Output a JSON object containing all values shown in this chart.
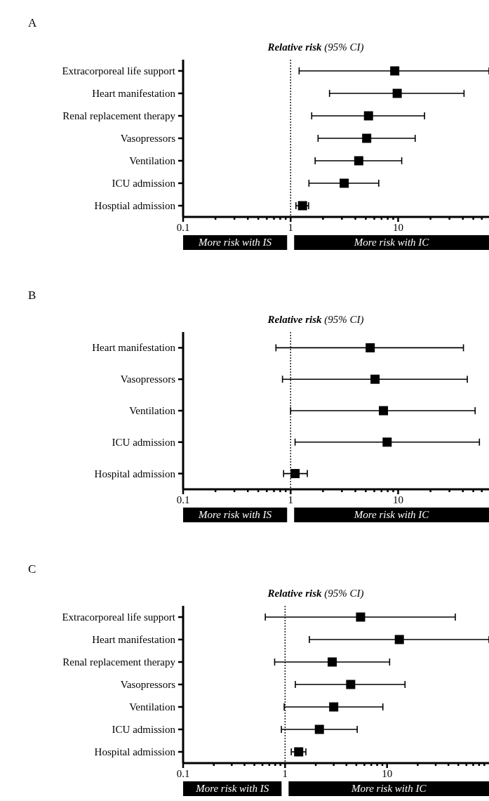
{
  "chart_data": [
    {
      "type": "scatter",
      "title": "A",
      "subtitle": "Relative risk (95% CI)",
      "orientation": "horizontal",
      "log": "x",
      "marker": "square",
      "color": "#000000",
      "categories": [
        "Extracorporeal life support",
        "Heart manifestation",
        "Renal replacement therapy",
        "Vasopressors",
        "Ventilation",
        "ICU admission",
        "Hosptial admission"
      ],
      "values": [
        9.3,
        9.8,
        5.3,
        5.1,
        4.3,
        3.15,
        1.29
      ],
      "errors": [
        [
          1.2,
          70
        ],
        [
          2.3,
          41
        ],
        [
          1.57,
          17.6
        ],
        [
          1.8,
          14.4
        ],
        [
          1.69,
          10.8
        ],
        [
          1.48,
          6.6
        ],
        [
          1.12,
          1.47
        ]
      ],
      "xlim": [
        0.1,
        70
      ],
      "xticks": [
        0.1,
        {
          "value": 0.2,
          "label": null
        },
        {
          "value": 0.3,
          "label": null
        },
        {
          "value": 0.4,
          "label": null
        },
        {
          "value": 0.5,
          "label": null
        },
        {
          "value": 0.6,
          "label": null
        },
        {
          "value": 0.7,
          "label": null
        },
        {
          "value": 0.8,
          "label": null
        },
        {
          "value": 0.9,
          "label": null
        },
        1,
        {
          "value": 2,
          "label": null
        },
        {
          "value": 3,
          "label": null
        },
        {
          "value": 4,
          "label": null
        },
        {
          "value": 5,
          "label": null
        },
        {
          "value": 6,
          "label": null
        },
        {
          "value": 7,
          "label": null
        },
        {
          "value": 8,
          "label": null
        },
        {
          "value": 9,
          "label": null
        },
        10,
        {
          "value": 20,
          "label": null
        },
        {
          "value": 30,
          "label": null
        },
        {
          "value": 40,
          "label": null
        },
        {
          "value": 50,
          "label": null
        },
        {
          "value": 60,
          "label": null
        }
      ],
      "ref_lines": [
        {
          "axis": "x",
          "value": 1,
          "line_style": "dotted"
        }
      ],
      "annotations": [
        "More risk with IS",
        "More risk with IC"
      ]
    },
    {
      "type": "scatter",
      "title": "B",
      "subtitle": "Relative risk (95% CI)",
      "orientation": "horizontal",
      "log": "x",
      "marker": "square",
      "color": "#000000",
      "categories": [
        "Heart manifestation",
        "Vasopressors",
        "Ventilation",
        "ICU admission",
        "Hospital admission"
      ],
      "values": [
        5.5,
        6.1,
        7.3,
        7.9,
        1.1
      ],
      "errors": [
        [
          0.73,
          40.5
        ],
        [
          0.84,
          44
        ],
        [
          1.0,
          52
        ],
        [
          1.1,
          57
        ],
        [
          0.86,
          1.43
        ]
      ],
      "xlim": [
        0.1,
        70
      ],
      "xticks": [
        0.1,
        {
          "value": 0.2,
          "label": null
        },
        {
          "value": 0.3,
          "label": null
        },
        {
          "value": 0.4,
          "label": null
        },
        {
          "value": 0.5,
          "label": null
        },
        {
          "value": 0.6,
          "label": null
        },
        {
          "value": 0.7,
          "label": null
        },
        {
          "value": 0.8,
          "label": null
        },
        {
          "value": 0.9,
          "label": null
        },
        1,
        {
          "value": 2,
          "label": null
        },
        {
          "value": 3,
          "label": null
        },
        {
          "value": 4,
          "label": null
        },
        {
          "value": 5,
          "label": null
        },
        {
          "value": 6,
          "label": null
        },
        {
          "value": 7,
          "label": null
        },
        {
          "value": 8,
          "label": null
        },
        {
          "value": 9,
          "label": null
        },
        10,
        {
          "value": 20,
          "label": null
        },
        {
          "value": 30,
          "label": null
        },
        {
          "value": 40,
          "label": null
        },
        {
          "value": 50,
          "label": null
        },
        {
          "value": 60,
          "label": null
        }
      ],
      "ref_lines": [
        {
          "axis": "x",
          "value": 1,
          "line_style": "dotted"
        }
      ],
      "annotations": [
        "More risk with IS",
        "More risk with IC"
      ]
    },
    {
      "type": "scatter",
      "title": "C",
      "subtitle": "Relative risk (95% CI)",
      "orientation": "horizontal",
      "log": "x",
      "marker": "square",
      "color": "#000000",
      "categories": [
        "Extracorporeal life support",
        "Heart manifestation",
        "Renal replacement therapy",
        "Vasopressors",
        "Ventilation",
        "ICU admission",
        "Hospital admission"
      ],
      "values": [
        5.5,
        13.2,
        2.9,
        4.4,
        3.0,
        2.17,
        1.36
      ],
      "errors": [
        [
          0.64,
          46.7
        ],
        [
          1.73,
          100
        ],
        [
          0.79,
          10.6
        ],
        [
          1.26,
          15
        ],
        [
          0.98,
          9.1
        ],
        [
          0.92,
          5.1
        ],
        [
          1.15,
          1.6
        ]
      ],
      "xlim": [
        0.1,
        100
      ],
      "xticks": [
        0.1,
        {
          "value": 0.2,
          "label": null
        },
        {
          "value": 0.3,
          "label": null
        },
        {
          "value": 0.4,
          "label": null
        },
        {
          "value": 0.5,
          "label": null
        },
        {
          "value": 0.6,
          "label": null
        },
        {
          "value": 0.7,
          "label": null
        },
        {
          "value": 0.8,
          "label": null
        },
        {
          "value": 0.9,
          "label": null
        },
        1,
        {
          "value": 2,
          "label": null
        },
        {
          "value": 3,
          "label": null
        },
        {
          "value": 4,
          "label": null
        },
        {
          "value": 5,
          "label": null
        },
        {
          "value": 6,
          "label": null
        },
        {
          "value": 7,
          "label": null
        },
        {
          "value": 8,
          "label": null
        },
        {
          "value": 9,
          "label": null
        },
        10,
        {
          "value": 20,
          "label": null
        },
        {
          "value": 30,
          "label": null
        },
        {
          "value": 40,
          "label": null
        },
        {
          "value": 50,
          "label": null
        },
        {
          "value": 60,
          "label": null
        },
        {
          "value": 70,
          "label": null
        },
        {
          "value": 80,
          "label": null
        },
        {
          "value": 90,
          "label": null
        }
      ],
      "ref_lines": [
        {
          "axis": "x",
          "value": 1,
          "line_style": "dotted"
        }
      ],
      "annotations": [
        "More risk with IS",
        "More risk with IC"
      ]
    }
  ]
}
